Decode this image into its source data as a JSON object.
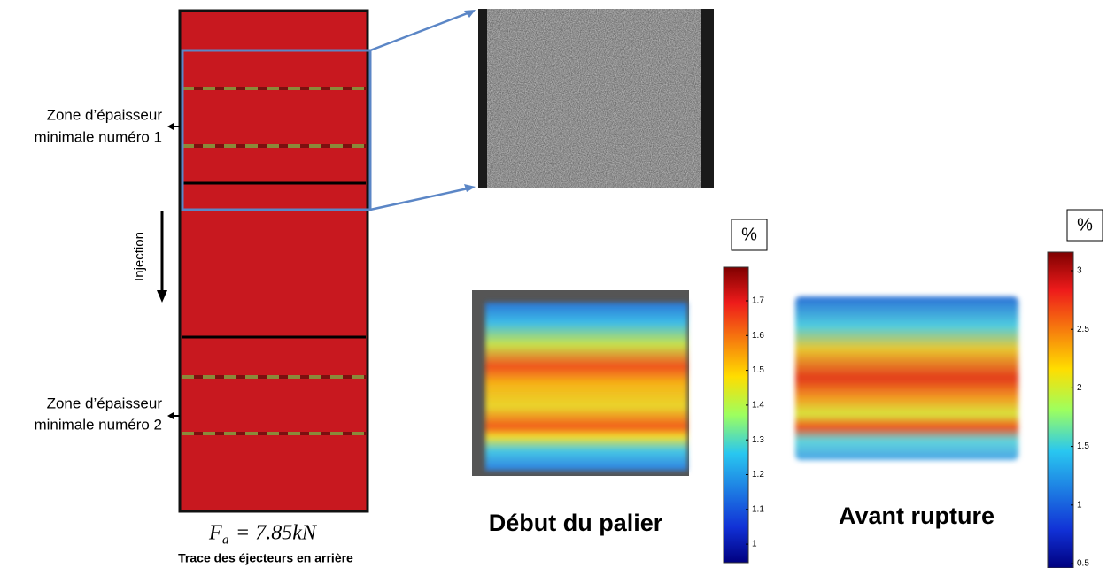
{
  "specimen": {
    "zones": [
      {
        "line1": "Zone  d’épaisseur",
        "line2": "minimale numéro 1"
      },
      {
        "line1": "Zone  d’épaisseur",
        "line2": "minimale numéro 2"
      }
    ],
    "injection": "Injection",
    "force": {
      "symbol": "F",
      "subscript": "a",
      "equation": "= 7.85kN"
    },
    "caption": "Trace des éjecteurs en arrière"
  },
  "maps": [
    {
      "title": "Début du palier",
      "unit": "%",
      "colorbar_labels": [
        "1.7",
        "1.6",
        "1.5",
        "1.4",
        "1.3",
        "1.2",
        "1.1",
        "1"
      ]
    },
    {
      "title": "Avant rupture",
      "unit": "%",
      "colorbar_labels": [
        "3",
        "2.5",
        "2",
        "1.5",
        "1",
        "0.5"
      ]
    }
  ]
}
